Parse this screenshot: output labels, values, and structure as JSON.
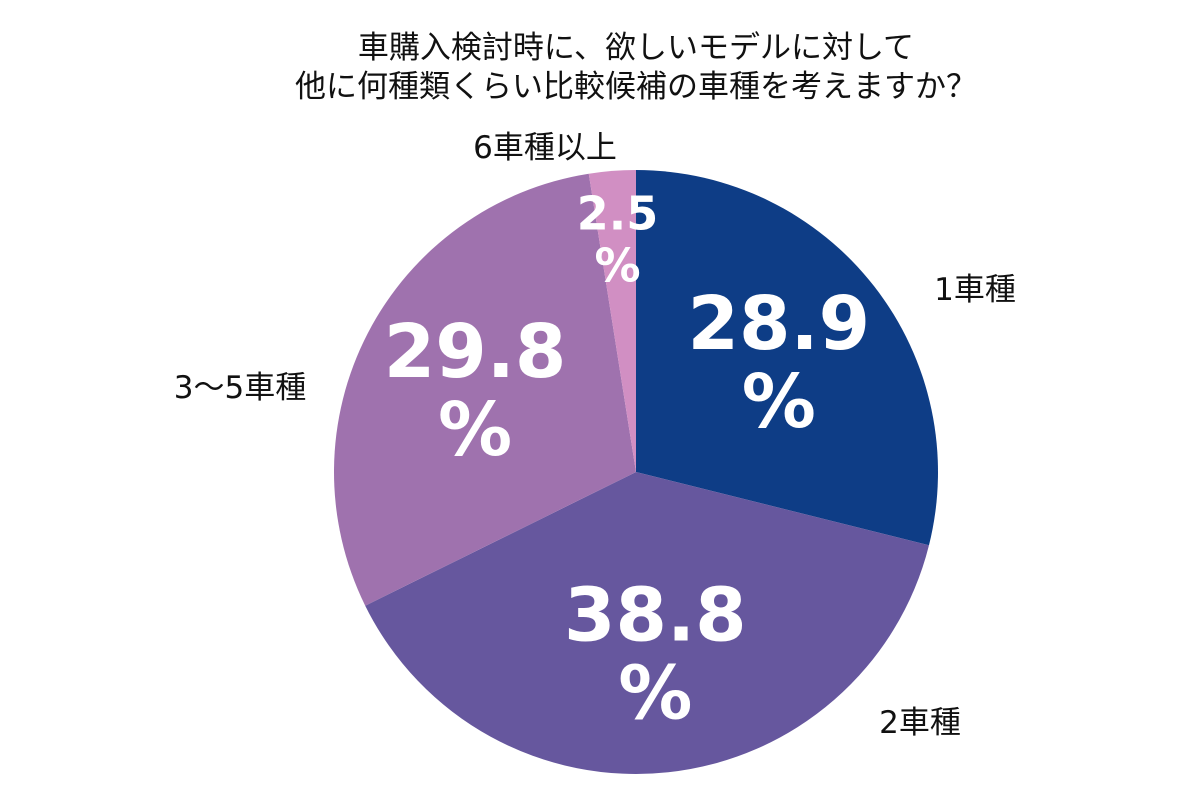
{
  "chart_data": {
    "type": "pie",
    "title_lines": [
      "車購入検討時に、欲しいモデルに対して",
      "他に何種類くらい比較候補の車種を考えますか？"
    ],
    "percent_symbol": "%",
    "slices": [
      {
        "label": "1車種",
        "value": 28.9,
        "value_text": "28.9",
        "color": "#0e3d86"
      },
      {
        "label": "2車種",
        "value": 38.8,
        "value_text": "38.8",
        "color": "#66579e"
      },
      {
        "label": "3〜5車種",
        "value": 29.8,
        "value_text": "29.8",
        "color": "#9f72ae"
      },
      {
        "label": "6車種以上",
        "value": 2.5,
        "value_text": "2.5",
        "color": "#d18fc3"
      }
    ]
  }
}
